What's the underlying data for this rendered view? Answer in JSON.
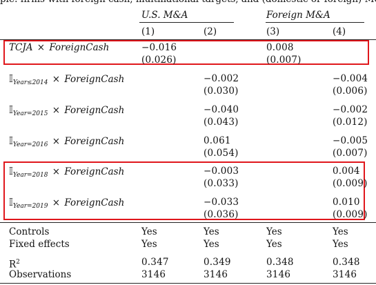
{
  "header": {
    "top_clip": "ple: firms with foreign cash, multinational targets, and (domestic or foreign) M&A years",
    "group_us": "U.S. M&A",
    "group_foreign": "Foreign M&A",
    "cols": [
      "(1)",
      "(2)",
      "(3)",
      "(4)"
    ]
  },
  "rows": [
    {
      "name": "tcja",
      "label_parts": {
        "a": "TCJA",
        "times": "×",
        "b": "ForeignCash"
      },
      "c1": {
        "coef": "−0.016",
        "se": "(0.026)"
      },
      "c3": {
        "coef": "0.008",
        "se": "(0.007)"
      }
    },
    {
      "name": "y2014",
      "label_parts": {
        "ind": "𝕀",
        "sub": "Year≤2014",
        "times": "×",
        "b": "ForeignCash"
      },
      "c2": {
        "coef": "−0.002",
        "se": "(0.030)"
      },
      "c4": {
        "coef": "−0.004",
        "se": "(0.006)"
      }
    },
    {
      "name": "y2015",
      "label_parts": {
        "ind": "𝕀",
        "sub": "Year=2015",
        "times": "×",
        "b": "ForeignCash"
      },
      "c2": {
        "coef": "−0.040",
        "se": "(0.043)"
      },
      "c4": {
        "coef": "−0.002",
        "se": "(0.012)"
      }
    },
    {
      "name": "y2016",
      "label_parts": {
        "ind": "𝕀",
        "sub": "Year=2016",
        "times": "×",
        "b": "ForeignCash"
      },
      "c2": {
        "coef": "0.061",
        "se": "(0.054)"
      },
      "c4": {
        "coef": "−0.005",
        "se": "(0.007)"
      }
    },
    {
      "name": "y2018",
      "label_parts": {
        "ind": "𝕀",
        "sub": "Year=2018",
        "times": "×",
        "b": "ForeignCash"
      },
      "c2": {
        "coef": "−0.003",
        "se": "(0.033)"
      },
      "c4": {
        "coef": "0.004",
        "se": "(0.009)"
      }
    },
    {
      "name": "y2019",
      "label_parts": {
        "ind": "𝕀",
        "sub": "Year=2019",
        "times": "×",
        "b": "ForeignCash"
      },
      "c2": {
        "coef": "−0.033",
        "se": "(0.036)"
      },
      "c4": {
        "coef": "0.010",
        "se": "(0.009)"
      }
    }
  ],
  "footer": {
    "controls": {
      "label": "Controls",
      "vals": [
        "Yes",
        "Yes",
        "Yes",
        "Yes"
      ]
    },
    "fixed": {
      "label": "Fixed effects",
      "vals": [
        "Yes",
        "Yes",
        "Yes",
        "Yes"
      ]
    },
    "r2": {
      "label": "R",
      "sup": "2",
      "vals": [
        "0.347",
        "0.349",
        "0.348",
        "0.348"
      ]
    },
    "obs": {
      "label": "Observations",
      "vals": [
        "3146",
        "3146",
        "3146",
        "3146"
      ]
    }
  },
  "highlight_color": "#e0161b"
}
